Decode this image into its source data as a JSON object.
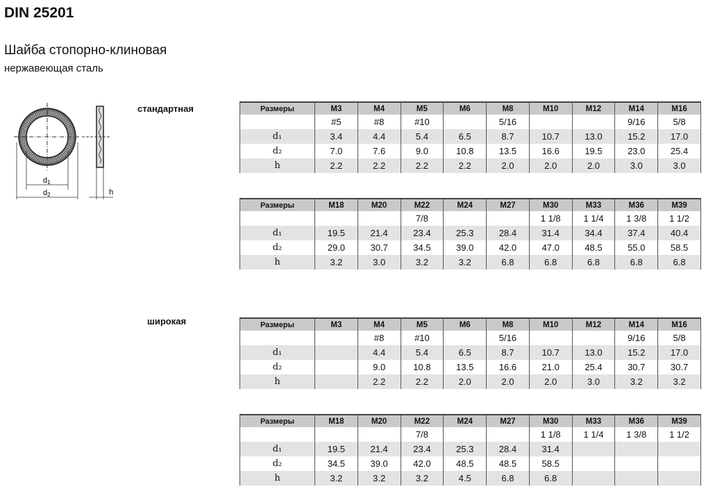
{
  "title": "DIN 25201",
  "subtitle": "Шайба стопорно-клиновая",
  "material": "нержавеющая сталь",
  "drawing": {
    "labels": {
      "d1": "d1",
      "d2": "d2",
      "h": "h"
    }
  },
  "sections": [
    {
      "label": "стандартная",
      "tables": [
        {
          "header": [
            "Размеры",
            "M3",
            "M4",
            "M5",
            "M6",
            "M8",
            "M10",
            "M12",
            "M14",
            "M16"
          ],
          "rows": [
            [
              "",
              "#5",
              "#8",
              "#10",
              "",
              "5/16",
              "",
              "",
              "9/16",
              "5/8"
            ],
            [
              "d₁",
              "3.4",
              "4.4",
              "5.4",
              "6.5",
              "8.7",
              "10.7",
              "13.0",
              "15.2",
              "17.0"
            ],
            [
              "d₂",
              "7.0",
              "7.6",
              "9.0",
              "10.8",
              "13.5",
              "16.6",
              "19.5",
              "23.0",
              "25.4"
            ],
            [
              "h",
              "2.2",
              "2.2",
              "2.2",
              "2.2",
              "2.0",
              "2.0",
              "2.0",
              "3.0",
              "3.0"
            ]
          ]
        },
        {
          "header": [
            "Размеры",
            "M18",
            "M20",
            "M22",
            "M24",
            "M27",
            "M30",
            "M33",
            "M36",
            "M39"
          ],
          "rows": [
            [
              "",
              "",
              "",
              "7/8",
              "",
              "",
              "1 1/8",
              "1 1/4",
              "1 3/8",
              "1 1/2"
            ],
            [
              "d₁",
              "19.5",
              "21.4",
              "23.4",
              "25.3",
              "28.4",
              "31.4",
              "34.4",
              "37.4",
              "40.4"
            ],
            [
              "d₂",
              "29.0",
              "30.7",
              "34.5",
              "39.0",
              "42.0",
              "47.0",
              "48.5",
              "55.0",
              "58.5"
            ],
            [
              "h",
              "3.2",
              "3.0",
              "3.2",
              "3.2",
              "6.8",
              "6.8",
              "6.8",
              "6.8",
              "6.8"
            ]
          ]
        }
      ]
    },
    {
      "label": "широкая",
      "tables": [
        {
          "header": [
            "Размеры",
            "M3",
            "M4",
            "M5",
            "M6",
            "M8",
            "M10",
            "M12",
            "M14",
            "M16"
          ],
          "rows": [
            [
              "",
              "",
              "#8",
              "#10",
              "",
              "5/16",
              "",
              "",
              "9/16",
              "5/8"
            ],
            [
              "d₁",
              "",
              "4.4",
              "5.4",
              "6.5",
              "8.7",
              "10.7",
              "13.0",
              "15.2",
              "17.0"
            ],
            [
              "d₂",
              "",
              "9.0",
              "10.8",
              "13.5",
              "16.6",
              "21.0",
              "25.4",
              "30.7",
              "30.7"
            ],
            [
              "h",
              "",
              "2.2",
              "2.2",
              "2.0",
              "2.0",
              "2.0",
              "3.0",
              "3.2",
              "3.2"
            ]
          ]
        },
        {
          "header": [
            "Размеры",
            "M18",
            "M20",
            "M22",
            "M24",
            "M27",
            "M30",
            "M33",
            "M36",
            "M39"
          ],
          "rows": [
            [
              "",
              "",
              "",
              "7/8",
              "",
              "",
              "1 1/8",
              "1 1/4",
              "1 3/8",
              "1 1/2"
            ],
            [
              "d₁",
              "19.5",
              "21.4",
              "23.4",
              "25.3",
              "28.4",
              "31.4",
              "",
              "",
              ""
            ],
            [
              "d₂",
              "34.5",
              "39.0",
              "42.0",
              "48.5",
              "48.5",
              "58.5",
              "",
              "",
              ""
            ],
            [
              "h",
              "3.2",
              "3.2",
              "3.2",
              "4.5",
              "6.8",
              "6.8",
              "",
              "",
              ""
            ]
          ]
        }
      ]
    }
  ]
}
